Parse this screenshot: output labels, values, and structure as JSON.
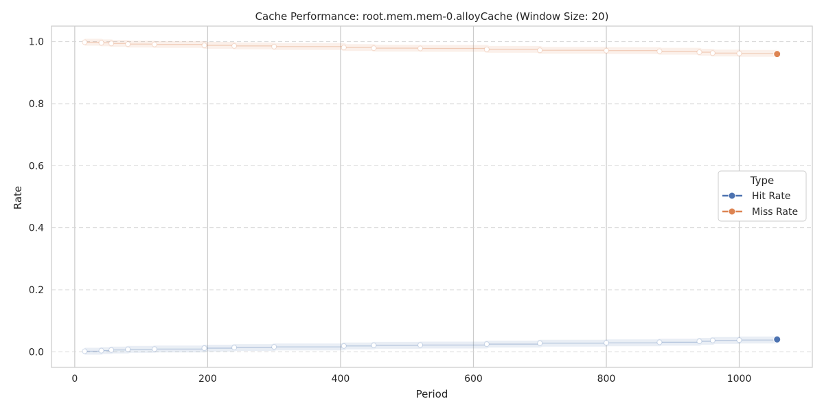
{
  "chart_data": {
    "type": "line",
    "title": "Cache Performance: root.mem.mem-0.alloyCache (Window Size: 20)",
    "xlabel": "Period",
    "ylabel": "Rate",
    "xlim": [
      -35,
      1110
    ],
    "ylim": [
      -0.05,
      1.05
    ],
    "xticks": [
      0,
      200,
      400,
      600,
      800,
      1000
    ],
    "yticks": [
      0.0,
      0.2,
      0.4,
      0.6,
      0.8,
      1.0
    ],
    "xtick_labels": [
      "0",
      "200",
      "400",
      "600",
      "800",
      "1000"
    ],
    "ytick_labels": [
      "0.0",
      "0.2",
      "0.4",
      "0.6",
      "0.8",
      "1.0"
    ],
    "grid": true,
    "legend": {
      "title": "Type",
      "placement": "center-right",
      "entries": [
        "Hit Rate",
        "Miss Rate"
      ]
    },
    "series": [
      {
        "name": "Hit Rate",
        "color": "#4c72b0",
        "x": [
          15,
          40,
          55,
          80,
          120,
          195,
          240,
          300,
          405,
          450,
          520,
          620,
          700,
          800,
          880,
          940,
          960,
          1000,
          1057
        ],
        "y": [
          0.002,
          0.004,
          0.006,
          0.008,
          0.009,
          0.012,
          0.014,
          0.016,
          0.019,
          0.021,
          0.022,
          0.025,
          0.028,
          0.029,
          0.031,
          0.034,
          0.037,
          0.038,
          0.04
        ]
      },
      {
        "name": "Miss Rate",
        "color": "#dd8452",
        "x": [
          15,
          40,
          55,
          80,
          120,
          195,
          240,
          300,
          405,
          450,
          520,
          620,
          700,
          800,
          880,
          940,
          960,
          1000,
          1057
        ],
        "y": [
          0.998,
          0.996,
          0.994,
          0.992,
          0.991,
          0.988,
          0.986,
          0.984,
          0.981,
          0.979,
          0.978,
          0.975,
          0.972,
          0.971,
          0.969,
          0.966,
          0.963,
          0.962,
          0.96
        ]
      }
    ]
  }
}
